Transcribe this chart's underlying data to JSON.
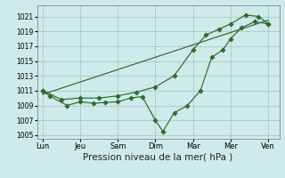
{
  "background_color": "#ceeaea",
  "grid_color": "#aacccc",
  "line_color": "#2d6a2d",
  "xlabel": "Pression niveau de la mer( hPa )",
  "xlabel_fontsize": 7.5,
  "ylim": [
    1004.5,
    1022.5
  ],
  "yticks": [
    1005,
    1007,
    1009,
    1011,
    1013,
    1015,
    1017,
    1019,
    1021
  ],
  "xtick_labels": [
    "Lun",
    "Jeu",
    "Sam",
    "Dim",
    "Mar",
    "Mer",
    "Ven"
  ],
  "xtick_positions": [
    0,
    1,
    2,
    3,
    4,
    5,
    6
  ],
  "xlim": [
    -0.15,
    6.3
  ],
  "line1_x": [
    0.0,
    0.18,
    0.65,
    1.0,
    1.35,
    1.65,
    2.0,
    2.35,
    2.65,
    3.0,
    3.2,
    3.5,
    3.85,
    4.2,
    4.5,
    4.8,
    5.0,
    5.3,
    5.65,
    6.0
  ],
  "line1_y": [
    1011,
    1010.3,
    1009,
    1009.5,
    1009.3,
    1009.4,
    1009.5,
    1010.0,
    1010.2,
    1007.0,
    1005.5,
    1008.0,
    1009.0,
    1011.0,
    1015.5,
    1016.5,
    1018.0,
    1019.5,
    1020.3,
    1020.0
  ],
  "line2_x": [
    0.0,
    0.5,
    1.0,
    1.5,
    2.0,
    2.5,
    3.0,
    3.5,
    4.0,
    4.35,
    4.7,
    5.0,
    5.4,
    5.75,
    6.0
  ],
  "line2_y": [
    1011,
    1009.8,
    1010.0,
    1010.0,
    1010.3,
    1010.8,
    1011.5,
    1013.0,
    1016.5,
    1018.5,
    1019.3,
    1020.0,
    1021.2,
    1021.0,
    1020.0
  ],
  "line3_x": [
    0.0,
    6.0
  ],
  "line3_y": [
    1010.5,
    1020.5
  ]
}
